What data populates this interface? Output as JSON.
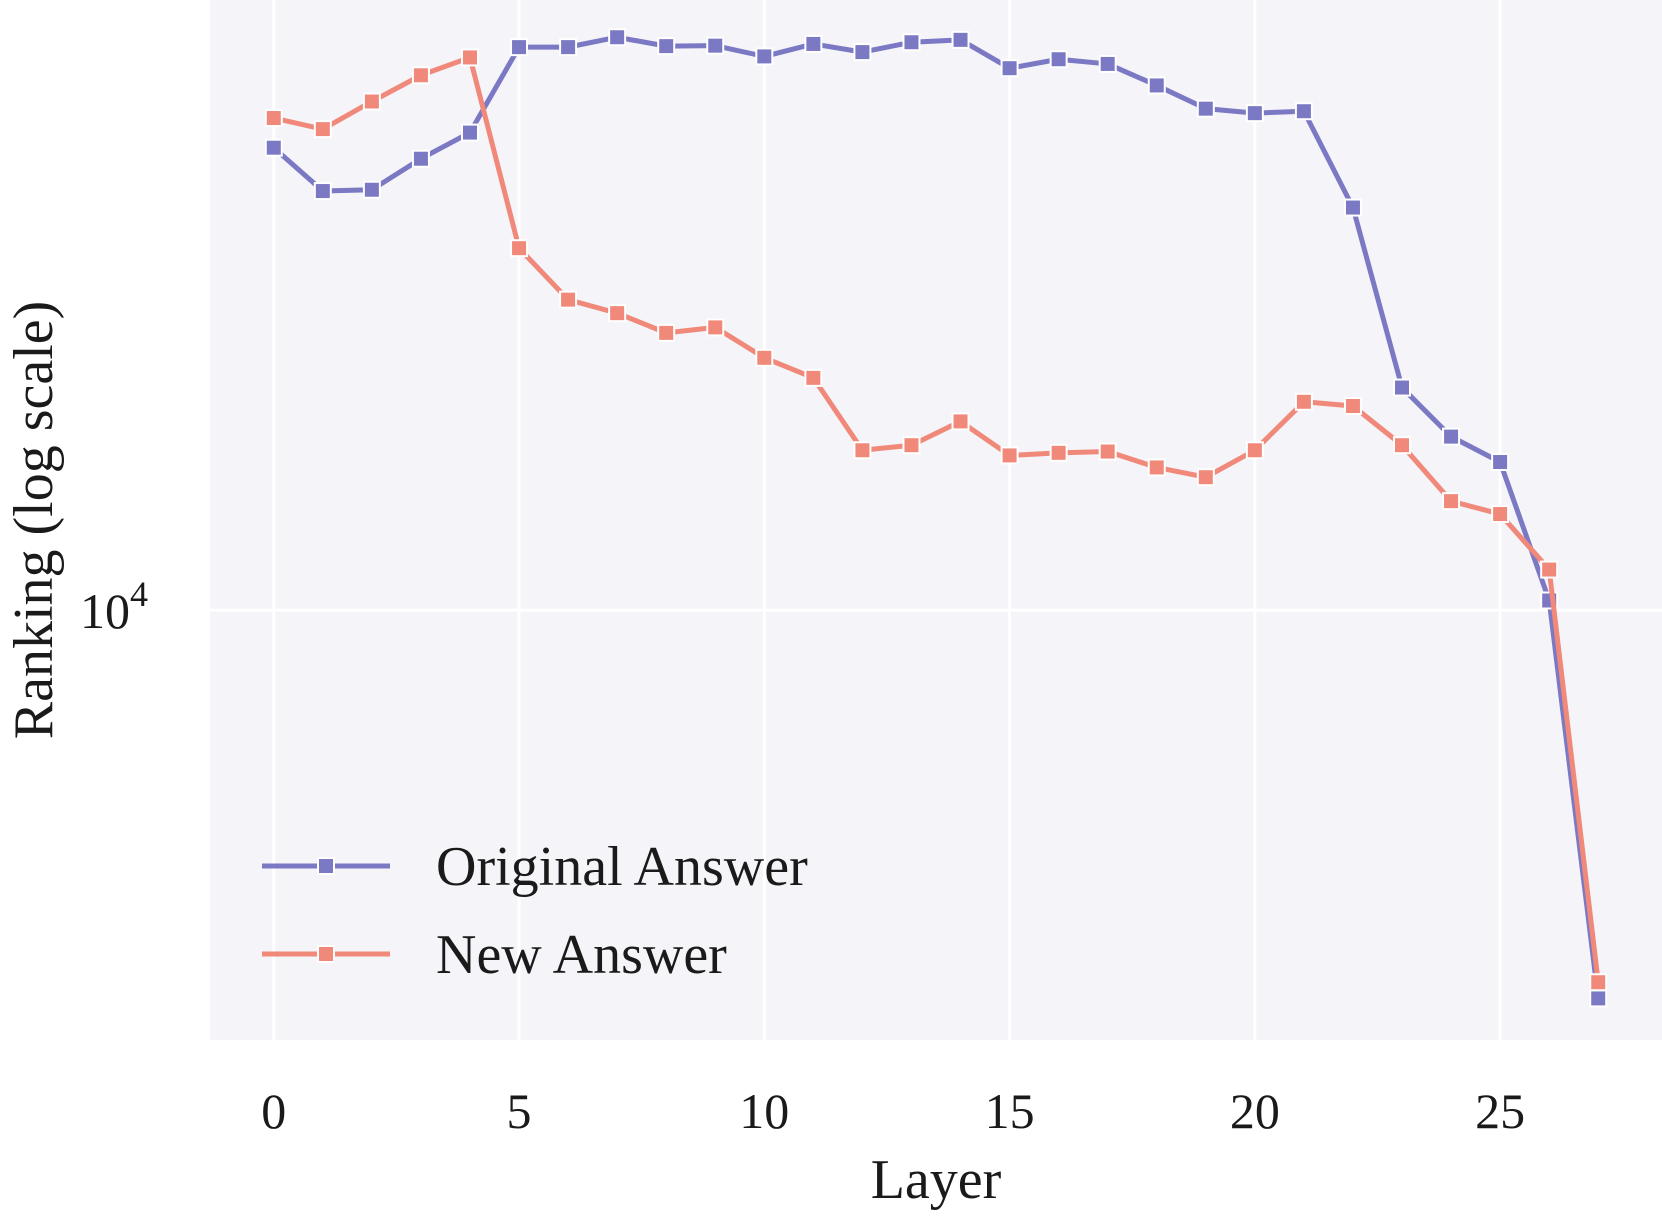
{
  "chart_data": {
    "type": "line",
    "title": "",
    "xlabel": "Layer",
    "ylabel": "Ranking (log scale)",
    "y_scale": "log",
    "xlim": [
      -1.3,
      28.3
    ],
    "ylim": [
      1730,
      120600
    ],
    "x_ticks": [
      0,
      5,
      10,
      15,
      20,
      25
    ],
    "x_tick_labels": [
      "0",
      "5",
      "10",
      "15",
      "20",
      "25"
    ],
    "y_ticks": [
      10000
    ],
    "y_tick_labels": [
      {
        "base": "10",
        "exp": "4"
      }
    ],
    "grid": true,
    "legend_position": "lower-left",
    "background_color": "#f4f4f9",
    "grid_color": "#ffffff",
    "marker": "square",
    "x": [
      0,
      1,
      2,
      3,
      4,
      5,
      6,
      7,
      8,
      9,
      10,
      11,
      12,
      13,
      14,
      15,
      16,
      17,
      18,
      19,
      20,
      21,
      22,
      23,
      24,
      25,
      26,
      27
    ],
    "series": [
      {
        "name": "Original Answer",
        "color": "#7b78c4",
        "values": [
          66000,
          55300,
          55600,
          63100,
          70200,
          99500,
          99500,
          103600,
          99900,
          100100,
          95800,
          100800,
          97500,
          101500,
          102500,
          91300,
          94700,
          92900,
          85100,
          77400,
          76000,
          76600,
          51700,
          24800,
          20300,
          18300,
          10400,
          2050
        ]
      },
      {
        "name": "New Answer",
        "color": "#f0897a",
        "values": [
          74500,
          71200,
          79700,
          88700,
          95400,
          43800,
          35500,
          33600,
          31000,
          31700,
          28000,
          25800,
          19200,
          19600,
          21600,
          18800,
          19000,
          19100,
          17900,
          17200,
          19200,
          23400,
          23000,
          19600,
          15600,
          14800,
          11800,
          2190
        ]
      }
    ]
  }
}
